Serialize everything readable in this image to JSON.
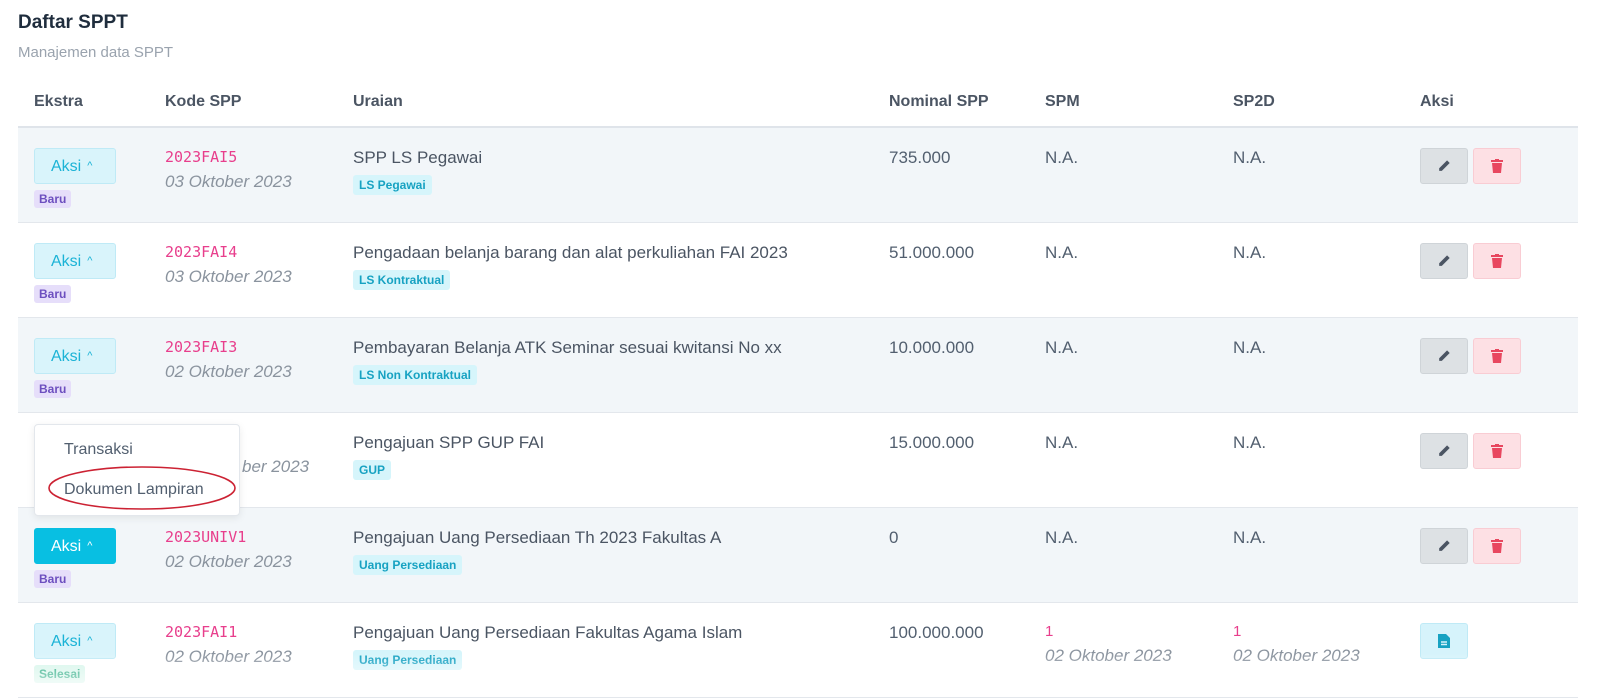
{
  "page": {
    "title": "Daftar SPPT",
    "subtitle": "Manajemen data SPPT"
  },
  "columns": [
    "Ekstra",
    "Kode SPP",
    "Uraian",
    "Nominal SPP",
    "SPM",
    "SP2D",
    "Aksi"
  ],
  "rows": [
    {
      "aksi_label": "Aksi",
      "status": "Baru",
      "kode": "2023FAI5",
      "tanggal": "03 Oktober 2023",
      "uraian": "SPP LS Pegawai",
      "jenis": "LS Pegawai",
      "nominal": "735.000",
      "spm": "N.A.",
      "sp2d": "N.A."
    },
    {
      "aksi_label": "Aksi",
      "status": "Baru",
      "kode": "2023FAI4",
      "tanggal": "03 Oktober 2023",
      "uraian": "Pengadaan belanja barang dan alat perkuliahan FAI 2023",
      "jenis": "LS Kontraktual",
      "nominal": "51.000.000",
      "spm": "N.A.",
      "sp2d": "N.A."
    },
    {
      "aksi_label": "Aksi",
      "status": "Baru",
      "kode": "2023FAI3",
      "tanggal": "02 Oktober 2023",
      "uraian": "Pembayaran Belanja ATK Seminar sesuai kwitansi No xx",
      "jenis": "LS Non Kontraktual",
      "nominal": "10.000.000",
      "spm": "N.A.",
      "sp2d": "N.A."
    },
    {
      "tanggal_partial": "ber 2023",
      "uraian": "Pengajuan SPP GUP FAI",
      "jenis": "GUP",
      "nominal": "15.000.000",
      "spm": "N.A.",
      "sp2d": "N.A."
    },
    {
      "aksi_label": "Aksi",
      "status": "Baru",
      "kode": "2023UNIV1",
      "tanggal": "02 Oktober 2023",
      "uraian": "Pengajuan Uang Persediaan Th 2023 Fakultas A",
      "jenis": "Uang Persediaan",
      "nominal": "0",
      "spm": "N.A.",
      "sp2d": "N.A."
    },
    {
      "aksi_label": "Aksi",
      "status": "Selesai",
      "kode": "2023FAI1",
      "tanggal": "02 Oktober 2023",
      "uraian": "Pengajuan Uang Persediaan Fakultas Agama Islam",
      "jenis": "Uang Persediaan",
      "nominal": "100.000.000",
      "spm": "1",
      "spm_tanggal": "02 Oktober 2023",
      "sp2d": "1",
      "sp2d_tanggal": "02 Oktober 2023"
    }
  ],
  "dropdown": {
    "items": [
      "Transaksi",
      "Dokumen Lampiran"
    ],
    "highlighted": "Dokumen Lampiran"
  },
  "colors": {
    "accent": "#08bfe2",
    "code": "#e83e8c",
    "highlight": "#cc2233"
  },
  "icons": {
    "edit": "pencil-icon",
    "delete": "trash-icon",
    "document": "document-icon",
    "toggle": "chevron-up-icon"
  }
}
